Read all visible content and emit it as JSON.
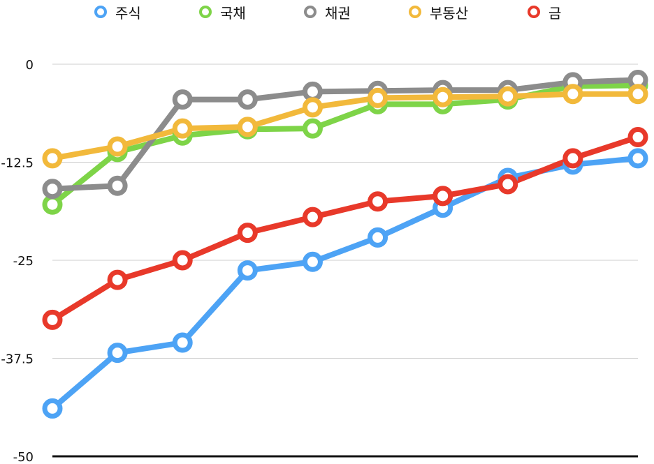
{
  "chart_data": {
    "type": "line",
    "title": "",
    "xlabel": "",
    "ylabel": "",
    "ylim": [
      -50,
      0
    ],
    "yticks": [
      0,
      -12.5,
      -25,
      -37.5,
      -50
    ],
    "ytick_labels": [
      "0",
      "-12.5",
      "-25",
      "-37.5",
      "-50"
    ],
    "x": [
      1,
      2,
      3,
      4,
      5,
      6,
      7,
      8,
      9,
      10
    ],
    "grid": true,
    "legend_position": "top",
    "series": [
      {
        "name": "주식",
        "color": "#4da3f5",
        "values": [
          -43.9,
          -36.8,
          -35.5,
          -26.3,
          -25.2,
          -22.1,
          -18.3,
          -14.5,
          -12.8,
          -12.0
        ]
      },
      {
        "name": "국채",
        "color": "#7ed448",
        "values": [
          -17.9,
          -11.2,
          -9.1,
          -8.3,
          -8.2,
          -5.1,
          -5.1,
          -4.5,
          -2.8,
          -2.7
        ]
      },
      {
        "name": "채권",
        "color": "#8c8c8c",
        "values": [
          -15.9,
          -15.5,
          -4.5,
          -4.5,
          -3.5,
          -3.4,
          -3.3,
          -3.3,
          -2.3,
          -2.0
        ]
      },
      {
        "name": "부동산",
        "color": "#f2b93b",
        "values": [
          -12.0,
          -10.5,
          -8.2,
          -8.0,
          -5.5,
          -4.3,
          -4.2,
          -4.1,
          -3.8,
          -3.8
        ]
      },
      {
        "name": "금",
        "color": "#e8392a",
        "values": [
          -32.6,
          -27.5,
          -25.0,
          -21.5,
          -19.5,
          -17.5,
          -16.8,
          -15.3,
          -12.0,
          -9.3
        ]
      }
    ]
  }
}
